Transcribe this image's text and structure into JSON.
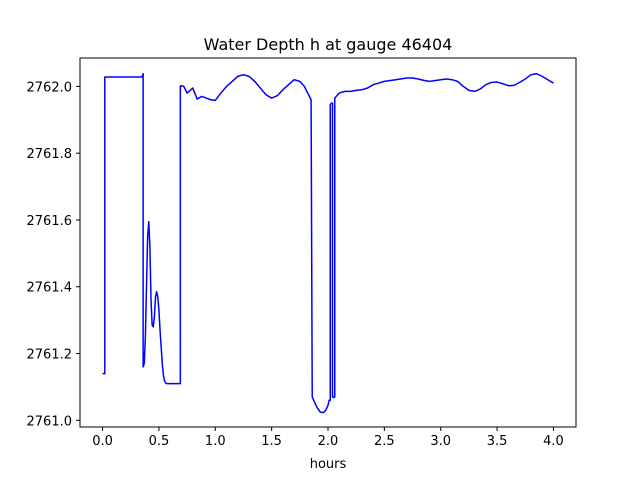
{
  "chart_data": {
    "type": "line",
    "title": "Water Depth h at gauge 46404",
    "xlabel": "hours",
    "ylabel": "",
    "xlim": [
      -0.2,
      4.2
    ],
    "ylim": [
      2760.98,
      2762.085
    ],
    "xticks": [
      0.0,
      0.5,
      1.0,
      1.5,
      2.0,
      2.5,
      3.0,
      3.5,
      4.0
    ],
    "xtick_labels": [
      "0.0",
      "0.5",
      "1.0",
      "1.5",
      "2.0",
      "2.5",
      "3.0",
      "3.5",
      "4.0"
    ],
    "yticks": [
      2761.0,
      2761.2,
      2761.4,
      2761.6,
      2761.8,
      2762.0
    ],
    "ytick_labels": [
      "2761.0",
      "2761.2",
      "2761.4",
      "2761.6",
      "2761.8",
      "2762.0"
    ],
    "grid": false,
    "series": [
      {
        "color": "#0000ff",
        "x": [
          0.0,
          0.02,
          0.02,
          0.35,
          0.36,
          0.36,
          0.37,
          0.38,
          0.39,
          0.4,
          0.41,
          0.42,
          0.43,
          0.44,
          0.45,
          0.46,
          0.47,
          0.48,
          0.49,
          0.5,
          0.51,
          0.52,
          0.53,
          0.54,
          0.55,
          0.56,
          0.57,
          0.58,
          0.59,
          0.6,
          0.62,
          0.64,
          0.66,
          0.68,
          0.69,
          0.69,
          0.72,
          0.75,
          0.8,
          0.84,
          0.88,
          0.92,
          0.96,
          1.0,
          1.05,
          1.1,
          1.15,
          1.2,
          1.25,
          1.3,
          1.35,
          1.4,
          1.45,
          1.5,
          1.55,
          1.6,
          1.65,
          1.7,
          1.75,
          1.79,
          1.82,
          1.85,
          1.86,
          1.88,
          1.9,
          1.93,
          1.96,
          1.98,
          2.0,
          2.01,
          2.02,
          2.02,
          2.03,
          2.04,
          2.04,
          2.05,
          2.05,
          2.06,
          2.06,
          2.1,
          2.15,
          2.2,
          2.25,
          2.3,
          2.35,
          2.4,
          2.45,
          2.5,
          2.6,
          2.7,
          2.75,
          2.8,
          2.85,
          2.9,
          3.0,
          3.05,
          3.1,
          3.15,
          3.2,
          3.25,
          3.3,
          3.35,
          3.4,
          3.45,
          3.5,
          3.55,
          3.6,
          3.65,
          3.7,
          3.75,
          3.8,
          3.85,
          3.9,
          3.95,
          4.0
        ],
        "y": [
          2761.14,
          2761.14,
          2762.028,
          2762.028,
          2762.038,
          2761.16,
          2761.17,
          2761.25,
          2761.4,
          2761.55,
          2761.595,
          2761.52,
          2761.36,
          2761.285,
          2761.28,
          2761.31,
          2761.37,
          2761.385,
          2761.37,
          2761.33,
          2761.27,
          2761.22,
          2761.17,
          2761.135,
          2761.118,
          2761.112,
          2761.11,
          2761.11,
          2761.11,
          2761.11,
          2761.11,
          2761.11,
          2761.11,
          2761.11,
          2761.11,
          2762.002,
          2762.0,
          2761.98,
          2761.995,
          2761.962,
          2761.97,
          2761.965,
          2761.96,
          2761.958,
          2761.98,
          2762.0,
          2762.015,
          2762.03,
          2762.035,
          2762.03,
          2762.015,
          2761.995,
          2761.975,
          2761.965,
          2761.972,
          2761.99,
          2762.005,
          2762.02,
          2762.015,
          2762.0,
          2761.98,
          2761.96,
          2761.07,
          2761.055,
          2761.04,
          2761.025,
          2761.023,
          2761.03,
          2761.045,
          2761.06,
          2761.06,
          2761.945,
          2761.95,
          2761.95,
          2761.07,
          2761.07,
          2761.068,
          2761.07,
          2761.965,
          2761.98,
          2761.985,
          2761.985,
          2761.988,
          2761.99,
          2761.995,
          2762.005,
          2762.01,
          2762.015,
          2762.02,
          2762.025,
          2762.025,
          2762.022,
          2762.018,
          2762.015,
          2762.02,
          2762.022,
          2762.02,
          2762.015,
          2762.0,
          2761.988,
          2761.985,
          2761.992,
          2762.005,
          2762.012,
          2762.013,
          2762.008,
          2762.002,
          2762.003,
          2762.012,
          2762.022,
          2762.035,
          2762.038,
          2762.03,
          2762.02,
          2762.01
        ]
      }
    ]
  }
}
